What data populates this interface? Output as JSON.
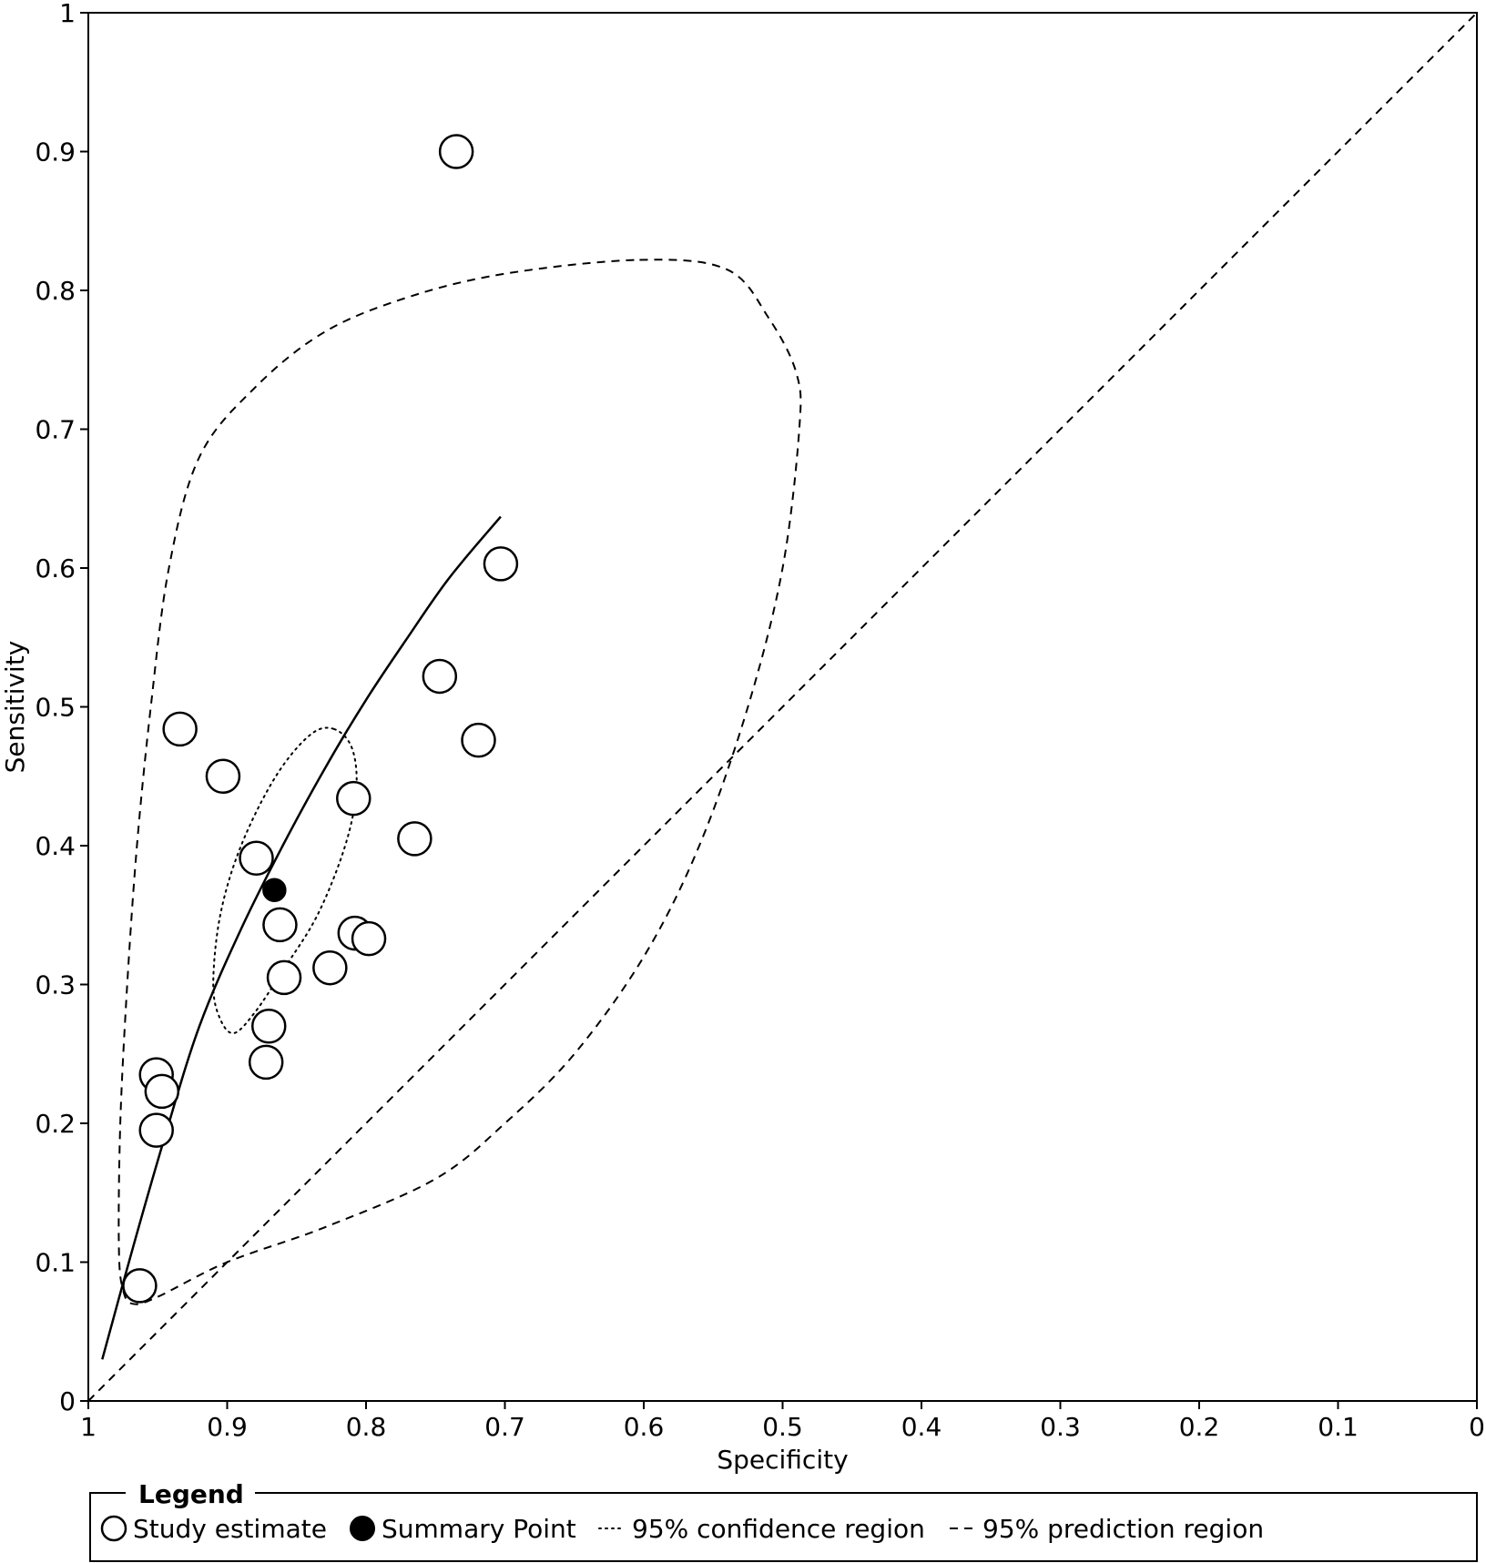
{
  "chart_data": {
    "type": "scatter",
    "title": "",
    "xlabel": "Specificity",
    "ylabel": "Sensitivity",
    "xlim": [
      1,
      0
    ],
    "ylim": [
      0,
      1
    ],
    "x_reversed": true,
    "x_ticks": [
      "1",
      "0.9",
      "0.8",
      "0.7",
      "0.6",
      "0.5",
      "0.4",
      "0.3",
      "0.2",
      "0.1",
      "0"
    ],
    "y_ticks": [
      "0",
      "0.1",
      "0.2",
      "0.3",
      "0.4",
      "0.5",
      "0.6",
      "0.7",
      "0.8",
      "0.9",
      "1"
    ],
    "grid": false,
    "legend_position": "bottom",
    "series": [
      {
        "name": "Study estimate",
        "marker": "open-circle",
        "points": [
          {
            "specificity": 0.735,
            "sensitivity": 0.9
          },
          {
            "specificity": 0.703,
            "sensitivity": 0.603
          },
          {
            "specificity": 0.747,
            "sensitivity": 0.522
          },
          {
            "specificity": 0.719,
            "sensitivity": 0.476
          },
          {
            "specificity": 0.934,
            "sensitivity": 0.484
          },
          {
            "specificity": 0.903,
            "sensitivity": 0.45
          },
          {
            "specificity": 0.809,
            "sensitivity": 0.434
          },
          {
            "specificity": 0.765,
            "sensitivity": 0.405
          },
          {
            "specificity": 0.879,
            "sensitivity": 0.391
          },
          {
            "specificity": 0.862,
            "sensitivity": 0.343
          },
          {
            "specificity": 0.808,
            "sensitivity": 0.337
          },
          {
            "specificity": 0.798,
            "sensitivity": 0.333
          },
          {
            "specificity": 0.826,
            "sensitivity": 0.312
          },
          {
            "specificity": 0.859,
            "sensitivity": 0.305
          },
          {
            "specificity": 0.87,
            "sensitivity": 0.27
          },
          {
            "specificity": 0.872,
            "sensitivity": 0.244
          },
          {
            "specificity": 0.951,
            "sensitivity": 0.235
          },
          {
            "specificity": 0.947,
            "sensitivity": 0.223
          },
          {
            "specificity": 0.951,
            "sensitivity": 0.195
          },
          {
            "specificity": 0.963,
            "sensitivity": 0.083
          }
        ]
      },
      {
        "name": "Summary Point",
        "marker": "filled-circle",
        "points": [
          {
            "specificity": 0.866,
            "sensitivity": 0.368
          }
        ]
      },
      {
        "name": "SROC curve",
        "style": "solid",
        "points": [
          {
            "specificity": 0.99,
            "sensitivity": 0.03
          },
          {
            "specificity": 0.968,
            "sensitivity": 0.11
          },
          {
            "specificity": 0.945,
            "sensitivity": 0.19
          },
          {
            "specificity": 0.92,
            "sensitivity": 0.27
          },
          {
            "specificity": 0.89,
            "sensitivity": 0.34
          },
          {
            "specificity": 0.86,
            "sensitivity": 0.4
          },
          {
            "specificity": 0.83,
            "sensitivity": 0.455
          },
          {
            "specificity": 0.8,
            "sensitivity": 0.505
          },
          {
            "specificity": 0.77,
            "sensitivity": 0.55
          },
          {
            "specificity": 0.74,
            "sensitivity": 0.593
          },
          {
            "specificity": 0.703,
            "sensitivity": 0.637
          }
        ]
      },
      {
        "name": "95% confidence region",
        "style": "dotted",
        "closed": true,
        "points": [
          {
            "specificity": 0.823,
            "sensitivity": 0.484
          },
          {
            "specificity": 0.81,
            "sensitivity": 0.47
          },
          {
            "specificity": 0.807,
            "sensitivity": 0.44
          },
          {
            "specificity": 0.815,
            "sensitivity": 0.4
          },
          {
            "specificity": 0.835,
            "sensitivity": 0.35
          },
          {
            "specificity": 0.86,
            "sensitivity": 0.31
          },
          {
            "specificity": 0.88,
            "sensitivity": 0.28
          },
          {
            "specificity": 0.895,
            "sensitivity": 0.265
          },
          {
            "specificity": 0.905,
            "sensitivity": 0.275
          },
          {
            "specificity": 0.91,
            "sensitivity": 0.3
          },
          {
            "specificity": 0.905,
            "sensitivity": 0.35
          },
          {
            "specificity": 0.89,
            "sensitivity": 0.4
          },
          {
            "specificity": 0.865,
            "sensitivity": 0.45
          },
          {
            "specificity": 0.84,
            "sensitivity": 0.48
          }
        ]
      },
      {
        "name": "95% prediction region",
        "style": "dashed",
        "closed": true,
        "points": [
          {
            "specificity": 0.603,
            "sensitivity": 0.822
          },
          {
            "specificity": 0.54,
            "sensitivity": 0.815
          },
          {
            "specificity": 0.51,
            "sensitivity": 0.78
          },
          {
            "specificity": 0.49,
            "sensitivity": 0.74
          },
          {
            "specificity": 0.488,
            "sensitivity": 0.7
          },
          {
            "specificity": 0.5,
            "sensitivity": 0.6
          },
          {
            "specificity": 0.525,
            "sensitivity": 0.5
          },
          {
            "specificity": 0.56,
            "sensitivity": 0.4
          },
          {
            "specificity": 0.6,
            "sensitivity": 0.32
          },
          {
            "specificity": 0.65,
            "sensitivity": 0.25
          },
          {
            "specificity": 0.7,
            "sensitivity": 0.2
          },
          {
            "specificity": 0.75,
            "sensitivity": 0.16
          },
          {
            "specificity": 0.83,
            "sensitivity": 0.125
          },
          {
            "specificity": 0.9,
            "sensitivity": 0.1
          },
          {
            "specificity": 0.95,
            "sensitivity": 0.075
          },
          {
            "specificity": 0.968,
            "sensitivity": 0.07
          },
          {
            "specificity": 0.975,
            "sensitivity": 0.08
          },
          {
            "specificity": 0.978,
            "sensitivity": 0.11
          },
          {
            "specificity": 0.977,
            "sensitivity": 0.2
          },
          {
            "specificity": 0.972,
            "sensitivity": 0.3
          },
          {
            "specificity": 0.965,
            "sensitivity": 0.4
          },
          {
            "specificity": 0.955,
            "sensitivity": 0.5
          },
          {
            "specificity": 0.942,
            "sensitivity": 0.6
          },
          {
            "specificity": 0.92,
            "sensitivity": 0.68
          },
          {
            "specificity": 0.88,
            "sensitivity": 0.73
          },
          {
            "specificity": 0.83,
            "sensitivity": 0.77
          },
          {
            "specificity": 0.77,
            "sensitivity": 0.795
          },
          {
            "specificity": 0.7,
            "sensitivity": 0.812
          }
        ]
      },
      {
        "name": "chance diagonal",
        "style": "dashed",
        "points": [
          {
            "specificity": 1,
            "sensitivity": 0
          },
          {
            "specificity": 0,
            "sensitivity": 1
          }
        ]
      }
    ],
    "legend": {
      "title": "Legend",
      "items": [
        {
          "label": "Study estimate",
          "symbol": "open-circle"
        },
        {
          "label": "Summary Point",
          "symbol": "filled-circle"
        },
        {
          "label": "95% confidence region",
          "symbol": "dotted-line"
        },
        {
          "label": "95% prediction region",
          "symbol": "dashed-line"
        }
      ]
    }
  }
}
